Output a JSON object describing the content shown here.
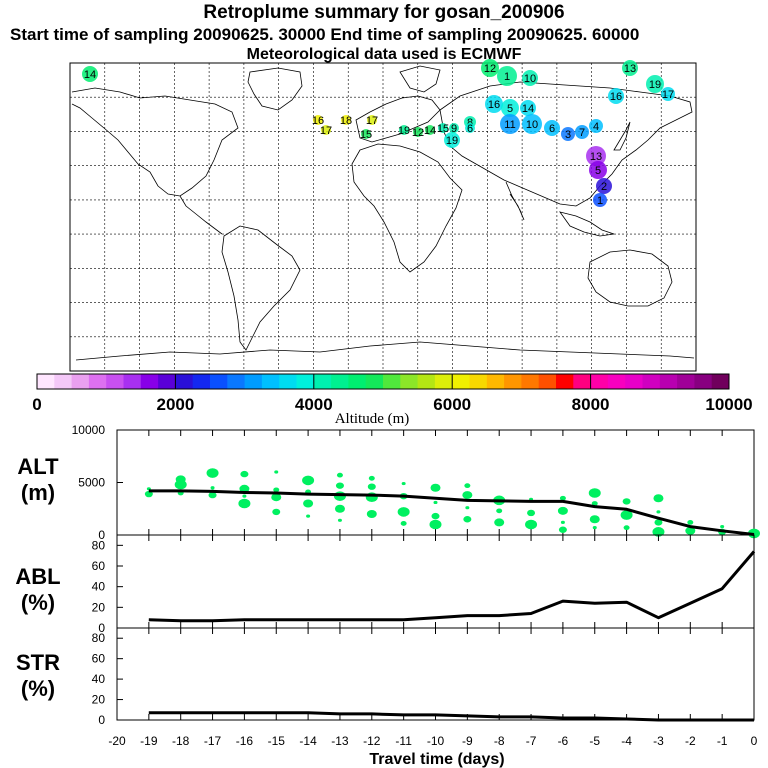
{
  "titles": {
    "main": "Retroplume summary for gosan_200906",
    "sampling": "Start time of sampling 20090625. 30000     End time of sampling 20090625. 60000",
    "met": "Meteorological data used is ECMWF"
  },
  "map": {
    "plume_labels": [
      "14",
      "12",
      "1",
      "10",
      "13",
      "19",
      "17",
      "16",
      "16",
      "5",
      "14",
      "11",
      "10",
      "6",
      "3",
      "7",
      "4",
      "19",
      "8",
      "6",
      "9",
      "15",
      "14",
      "19",
      "15",
      "17",
      "18",
      "17",
      "16",
      "12",
      "13",
      "5",
      "2",
      "1"
    ]
  },
  "colorbar": {
    "ticks": [
      "0",
      "2000",
      "4000",
      "6000",
      "8000",
      "10000"
    ],
    "label": "Altitude (m)",
    "colors": [
      "#ffe6ff",
      "#f4c8f8",
      "#eaa0f0",
      "#dd70f0",
      "#c850f0",
      "#a830f0",
      "#8800e8",
      "#5a00d8",
      "#2a10d8",
      "#1428f0",
      "#0a50ff",
      "#0a78ff",
      "#009cff",
      "#00c0ff",
      "#00dcf0",
      "#00f0dc",
      "#00f0b0",
      "#00f090",
      "#00ee70",
      "#14e85a",
      "#50e83c",
      "#8ce628",
      "#b4e614",
      "#dcee0a",
      "#f0f000",
      "#f8d800",
      "#ffb800",
      "#ff9600",
      "#ff7800",
      "#ff5000",
      "#ff0000",
      "#ff0080",
      "#ff00a8",
      "#f800c0",
      "#e800c8",
      "#d000c0",
      "#b800b0",
      "#a00098",
      "#880080",
      "#70005c"
    ]
  },
  "chart_data": [
    {
      "type": "line",
      "panel": "ALT",
      "ylabel": "ALT\n(m)",
      "ylabel_lines": [
        "ALT",
        "(m)"
      ],
      "ylim": [
        0,
        10000
      ],
      "yticks": [
        "0",
        "5000",
        "10000"
      ],
      "x": [
        -19,
        -18,
        -17,
        -16,
        -15,
        -14,
        -13,
        -12,
        -11,
        -10,
        -9,
        -8,
        -7,
        -6,
        -5,
        -4,
        -3,
        -2,
        -1,
        0
      ],
      "values": [
        4200,
        4200,
        4150,
        4050,
        4000,
        3900,
        3850,
        3800,
        3700,
        3500,
        3300,
        3250,
        3200,
        3200,
        2700,
        2450,
        1600,
        800,
        400,
        50
      ],
      "scatter": {
        "color": "#00f060",
        "points": [
          [
            -19,
            4400
          ],
          [
            -19,
            3900
          ],
          [
            -18,
            4800
          ],
          [
            -18,
            4000
          ],
          [
            -18,
            5300
          ],
          [
            -17,
            4500
          ],
          [
            -17,
            3800
          ],
          [
            -17,
            5900
          ],
          [
            -17,
            4100
          ],
          [
            -16,
            4400
          ],
          [
            -16,
            3700
          ],
          [
            -16,
            5800
          ],
          [
            -16,
            3000
          ],
          [
            -15,
            4300
          ],
          [
            -15,
            3600
          ],
          [
            -15,
            6000
          ],
          [
            -15,
            2200
          ],
          [
            -14,
            5200
          ],
          [
            -14,
            4100
          ],
          [
            -14,
            3000
          ],
          [
            -14,
            1800
          ],
          [
            -13,
            4700
          ],
          [
            -13,
            3700
          ],
          [
            -13,
            5700
          ],
          [
            -13,
            2500
          ],
          [
            -13,
            1400
          ],
          [
            -12,
            4600
          ],
          [
            -12,
            3600
          ],
          [
            -12,
            5400
          ],
          [
            -12,
            2000
          ],
          [
            -11,
            4900
          ],
          [
            -11,
            3700
          ],
          [
            -11,
            2200
          ],
          [
            -11,
            1100
          ],
          [
            -10,
            4500
          ],
          [
            -10,
            3100
          ],
          [
            -10,
            1800
          ],
          [
            -10,
            1000
          ],
          [
            -9,
            4700
          ],
          [
            -9,
            3800
          ],
          [
            -9,
            2600
          ],
          [
            -9,
            1500
          ],
          [
            -8,
            3300
          ],
          [
            -8,
            2300
          ],
          [
            -8,
            1200
          ],
          [
            -7,
            3400
          ],
          [
            -7,
            2100
          ],
          [
            -7,
            1000
          ],
          [
            -6,
            3500
          ],
          [
            -6,
            2300
          ],
          [
            -6,
            1200
          ],
          [
            -6,
            500
          ],
          [
            -5,
            4000
          ],
          [
            -5,
            3000
          ],
          [
            -5,
            1500
          ],
          [
            -5,
            700
          ],
          [
            -4,
            3200
          ],
          [
            -4,
            1900
          ],
          [
            -4,
            700
          ],
          [
            -3,
            3500
          ],
          [
            -3,
            2200
          ],
          [
            -3,
            1200
          ],
          [
            -3,
            300
          ],
          [
            -2,
            1200
          ],
          [
            -2,
            400
          ],
          [
            -1,
            800
          ],
          [
            -1,
            300
          ],
          [
            0,
            150
          ]
        ]
      }
    },
    {
      "type": "line",
      "panel": "ABL",
      "ylabel": "ABL\n(%)",
      "ylabel_lines": [
        "ABL",
        "(%)"
      ],
      "ylim": [
        0,
        90
      ],
      "yticks": [
        "0",
        "20",
        "40",
        "60",
        "80"
      ],
      "x": [
        -19,
        -18,
        -17,
        -16,
        -15,
        -14,
        -13,
        -12,
        -11,
        -10,
        -9,
        -8,
        -7,
        -6,
        -5,
        -4,
        -3,
        -2,
        -1,
        0
      ],
      "values": [
        8,
        7,
        7,
        8,
        8,
        8,
        8,
        8,
        8,
        10,
        12,
        12,
        14,
        26,
        24,
        25,
        10,
        24,
        38,
        74
      ]
    },
    {
      "type": "line",
      "panel": "STR",
      "ylabel": "STR\n(%)",
      "ylabel_lines": [
        "STR",
        "(%)"
      ],
      "ylim": [
        0,
        90
      ],
      "yticks": [
        "0",
        "20",
        "40",
        "60",
        "80"
      ],
      "x": [
        -19,
        -18,
        -17,
        -16,
        -15,
        -14,
        -13,
        -12,
        -11,
        -10,
        -9,
        -8,
        -7,
        -6,
        -5,
        -4,
        -3,
        -2,
        -1,
        0
      ],
      "values": [
        7,
        7,
        7,
        7,
        7,
        7,
        6,
        6,
        5,
        5,
        4,
        3,
        3,
        2,
        2,
        1,
        0,
        0,
        0,
        0
      ]
    }
  ],
  "xaxis": {
    "ticks": [
      "-20",
      "-19",
      "-18",
      "-17",
      "-16",
      "-15",
      "-14",
      "-13",
      "-12",
      "-11",
      "-10",
      "-9",
      "-8",
      "-7",
      "-6",
      "-5",
      "-4",
      "-3",
      "-2",
      "-1",
      "0"
    ],
    "xlim": [
      -20,
      0
    ],
    "label": "Travel time (days)"
  }
}
